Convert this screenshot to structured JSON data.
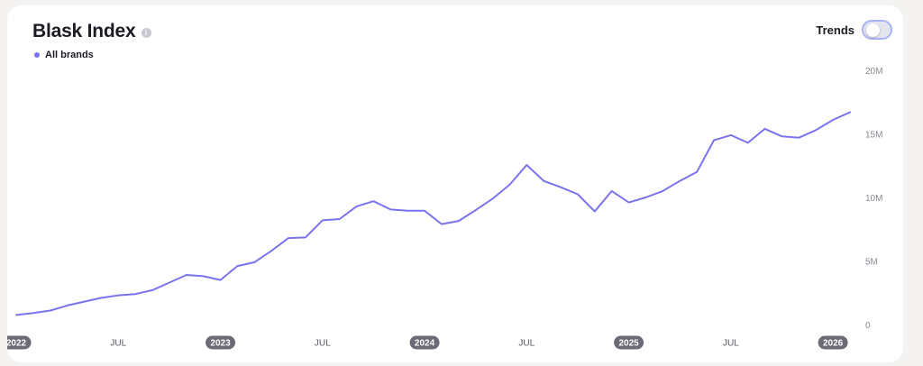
{
  "header": {
    "title": "Blask Index",
    "info_icon": "info-icon"
  },
  "legend": {
    "label": "All brands",
    "color": "#7b73ee"
  },
  "trends": {
    "label": "Trends",
    "enabled": false
  },
  "chart_data": {
    "type": "line",
    "title": "Blask Index",
    "xlabel": "",
    "ylabel": "",
    "ylim": [
      0,
      20000000
    ],
    "grid": false,
    "legend_placement": "top-left",
    "y_ticks": [
      {
        "value": 0,
        "label": "0"
      },
      {
        "value": 5000000,
        "label": "5M"
      },
      {
        "value": 10000000,
        "label": "10M"
      },
      {
        "value": 15000000,
        "label": "15M"
      },
      {
        "value": 20000000,
        "label": "20M"
      }
    ],
    "x_ticks": [
      {
        "date": "2022-01",
        "label": "2022",
        "year": true
      },
      {
        "date": "2022-07",
        "label": "JUL",
        "year": false
      },
      {
        "date": "2023-01",
        "label": "2023",
        "year": true
      },
      {
        "date": "2023-07",
        "label": "JUL",
        "year": false
      },
      {
        "date": "2024-01",
        "label": "2024",
        "year": true
      },
      {
        "date": "2024-07",
        "label": "JUL",
        "year": false
      },
      {
        "date": "2025-01",
        "label": "2025",
        "year": true
      },
      {
        "date": "2025-07",
        "label": "JUL",
        "year": false
      },
      {
        "date": "2026-01",
        "label": "2026",
        "year": true
      }
    ],
    "x_range": [
      "2022-01",
      "2026-02"
    ],
    "series": [
      {
        "name": "All brands",
        "color": "#7b73ee",
        "x": [
          "2022-01",
          "2022-02",
          "2022-03",
          "2022-04",
          "2022-05",
          "2022-06",
          "2022-07",
          "2022-08",
          "2022-09",
          "2022-10",
          "2022-11",
          "2022-12",
          "2023-01",
          "2023-02",
          "2023-03",
          "2023-04",
          "2023-05",
          "2023-06",
          "2023-07",
          "2023-08",
          "2023-09",
          "2023-10",
          "2023-11",
          "2023-12",
          "2024-01",
          "2024-02",
          "2024-03",
          "2024-04",
          "2024-05",
          "2024-06",
          "2024-07",
          "2024-08",
          "2024-09",
          "2024-10",
          "2024-11",
          "2024-12",
          "2025-01",
          "2025-02",
          "2025-03",
          "2025-04",
          "2025-05",
          "2025-06",
          "2025-07",
          "2025-08",
          "2025-09",
          "2025-10",
          "2025-11",
          "2025-12",
          "2026-01",
          "2026-02"
        ],
        "values": [
          750000,
          900000,
          1100000,
          1500000,
          1800000,
          2100000,
          2300000,
          2400000,
          2700000,
          3300000,
          3900000,
          3800000,
          3500000,
          4600000,
          4900000,
          5800000,
          6800000,
          6850000,
          8200000,
          8300000,
          9300000,
          9700000,
          9050000,
          8950000,
          8950000,
          7900000,
          8150000,
          9000000,
          9900000,
          11000000,
          12550000,
          11300000,
          10800000,
          10250000,
          8900000,
          10500000,
          9600000,
          10000000,
          10500000,
          11300000,
          12000000,
          14500000,
          14900000,
          14300000,
          15400000,
          14800000,
          14700000,
          15300000,
          16100000,
          16700000
        ]
      }
    ]
  }
}
